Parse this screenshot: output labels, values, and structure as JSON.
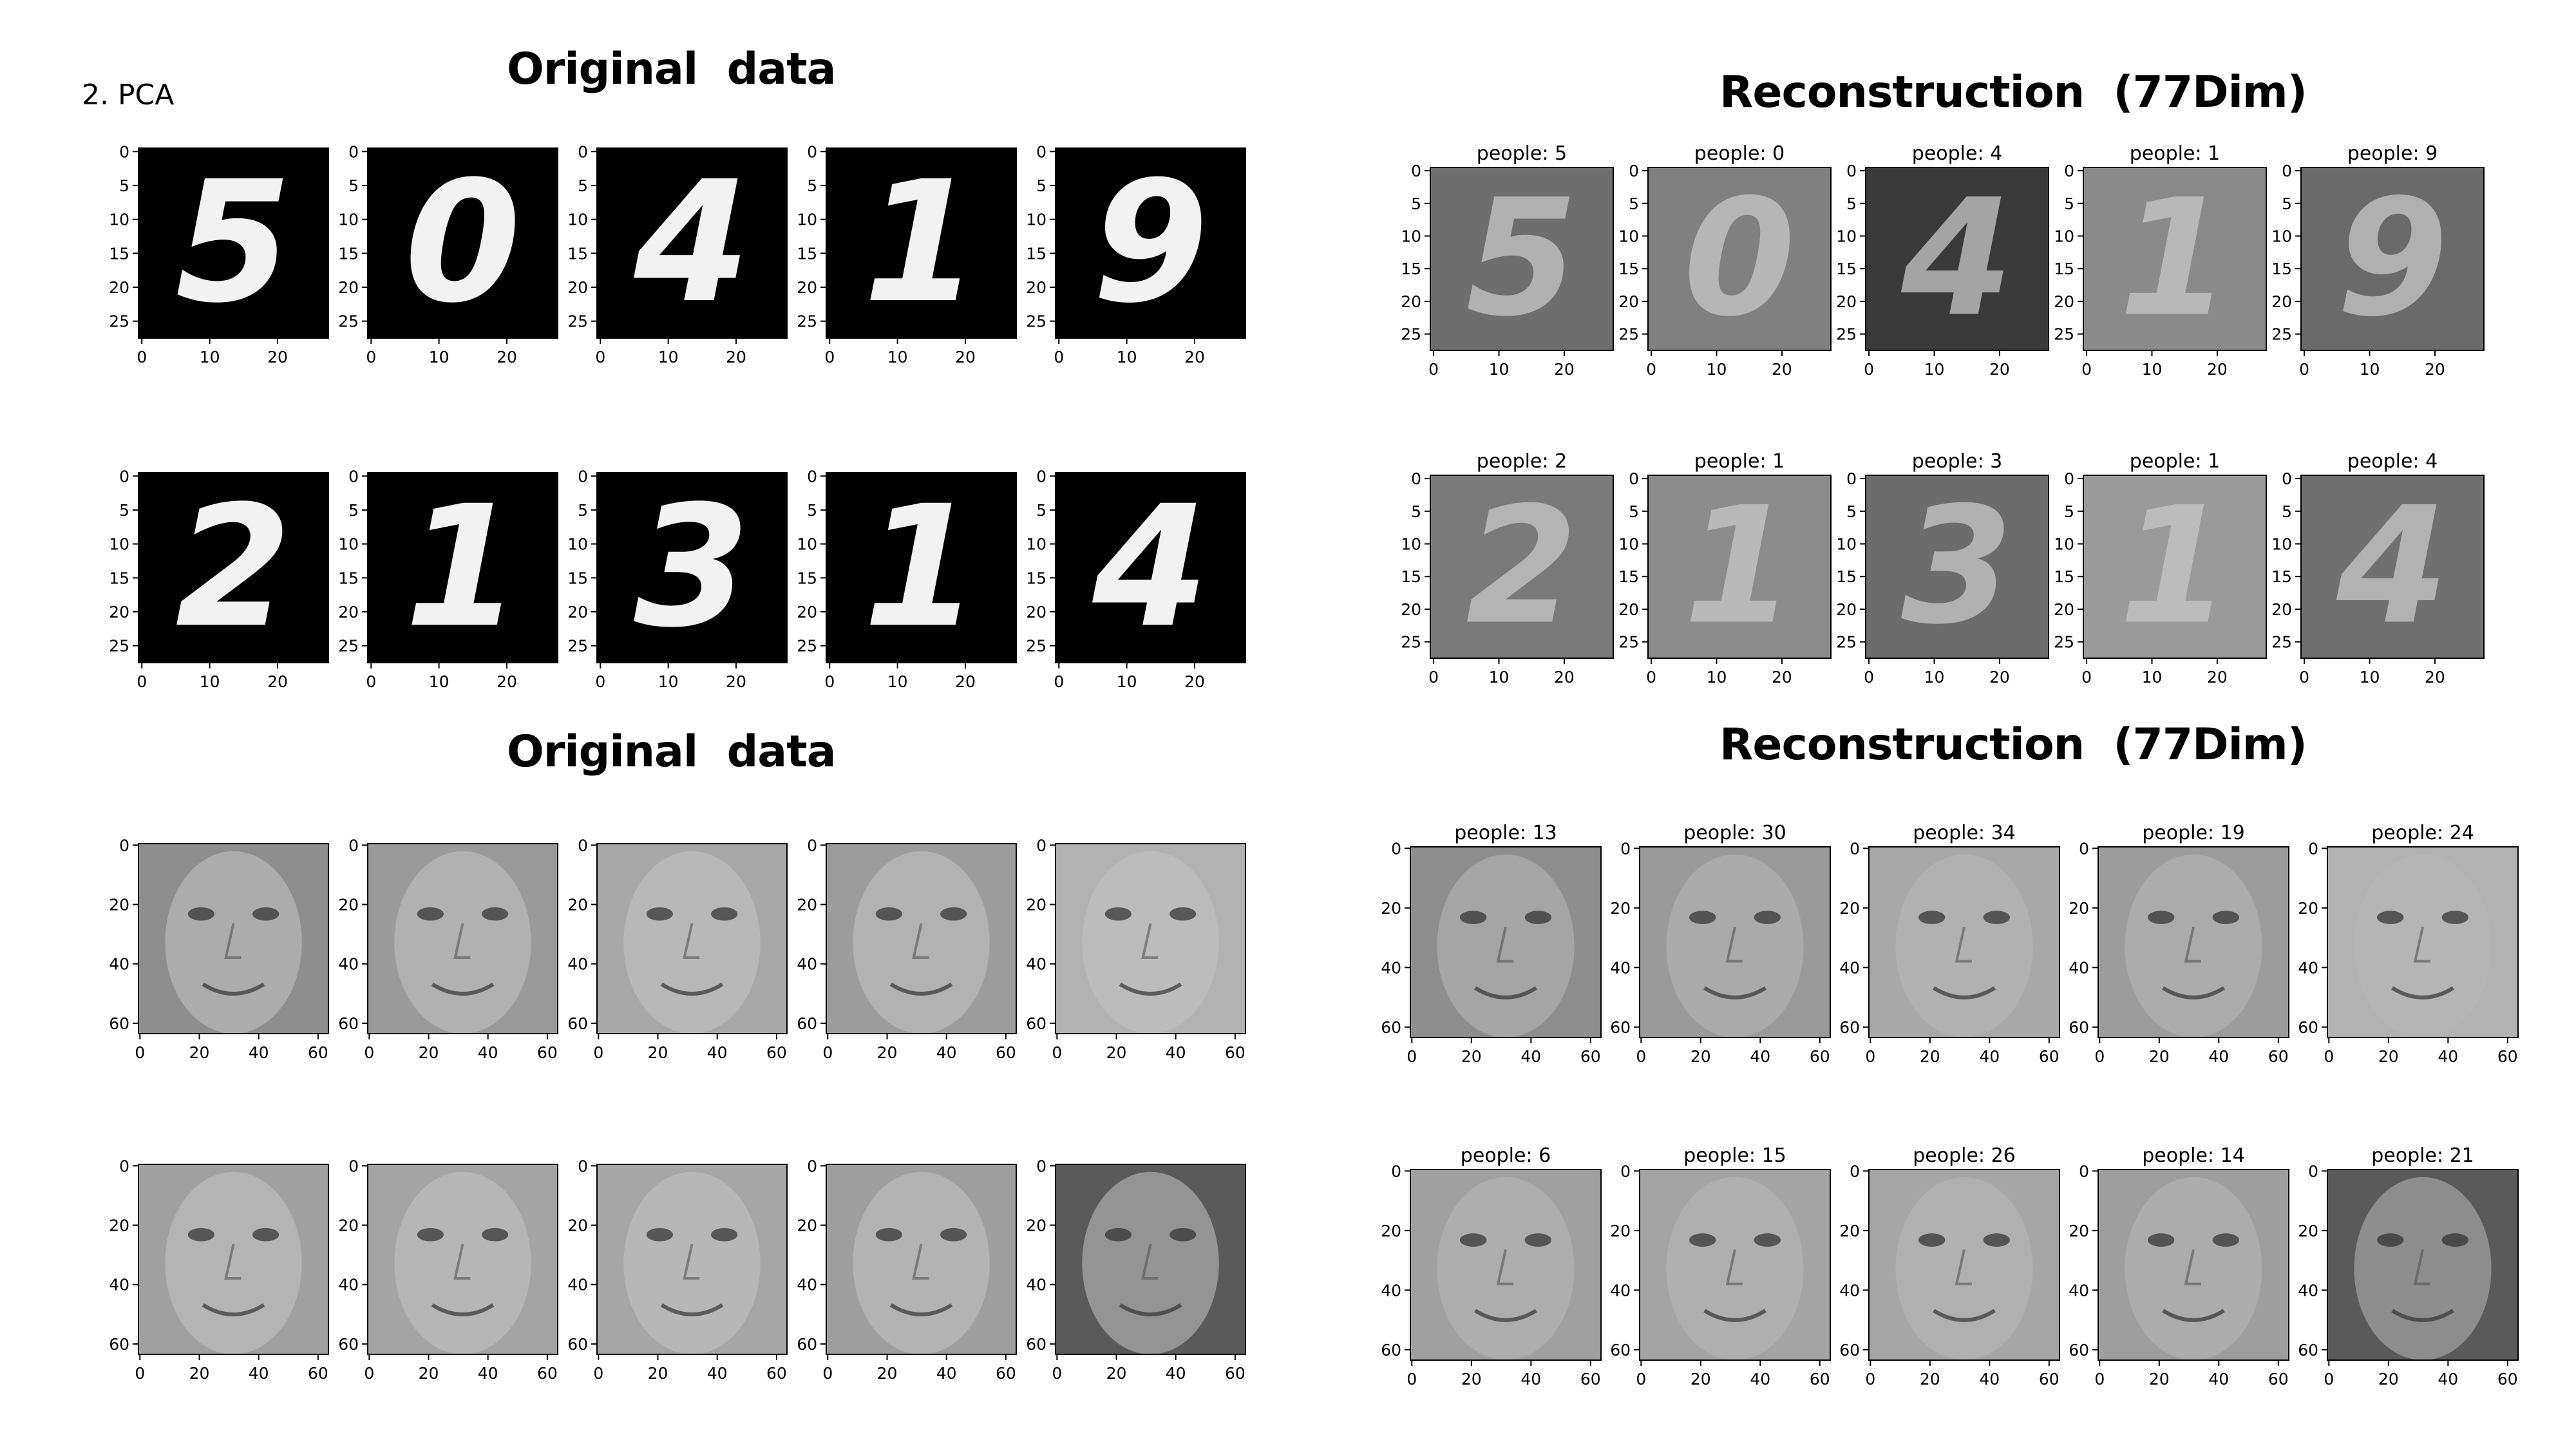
{
  "slide_label": "2. PCA",
  "digits": {
    "original_title": "Original  data",
    "reconstruction_title": "Reconstruction  (77Dim)",
    "x_ticks": [
      "0",
      "10",
      "20"
    ],
    "y_ticks": [
      "0",
      "5",
      "10",
      "15",
      "20",
      "25"
    ],
    "original_digits": [
      "5",
      "0",
      "4",
      "1",
      "9",
      "2",
      "1",
      "3",
      "1",
      "4"
    ],
    "reconstruction_titles": [
      "people: 5",
      "people: 0",
      "people: 4",
      "people: 1",
      "people: 9",
      "people: 2",
      "people: 1",
      "people: 3",
      "people: 1",
      "people: 4"
    ]
  },
  "faces": {
    "original_title": "Original  data",
    "reconstruction_title": "Reconstruction  (77Dim)",
    "x_ticks": [
      "0",
      "20",
      "40",
      "60"
    ],
    "y_ticks": [
      "0",
      "20",
      "40",
      "60"
    ],
    "reconstruction_titles": [
      "people: 13",
      "people: 30",
      "people: 34",
      "people: 19",
      "people: 24",
      "people: 6",
      "people: 15",
      "people: 26",
      "people: 14",
      "people: 21"
    ]
  },
  "colors": {
    "image_black": "#000000",
    "digit_white": "#f2f2f2",
    "face_gray": "#9a9a9a"
  }
}
